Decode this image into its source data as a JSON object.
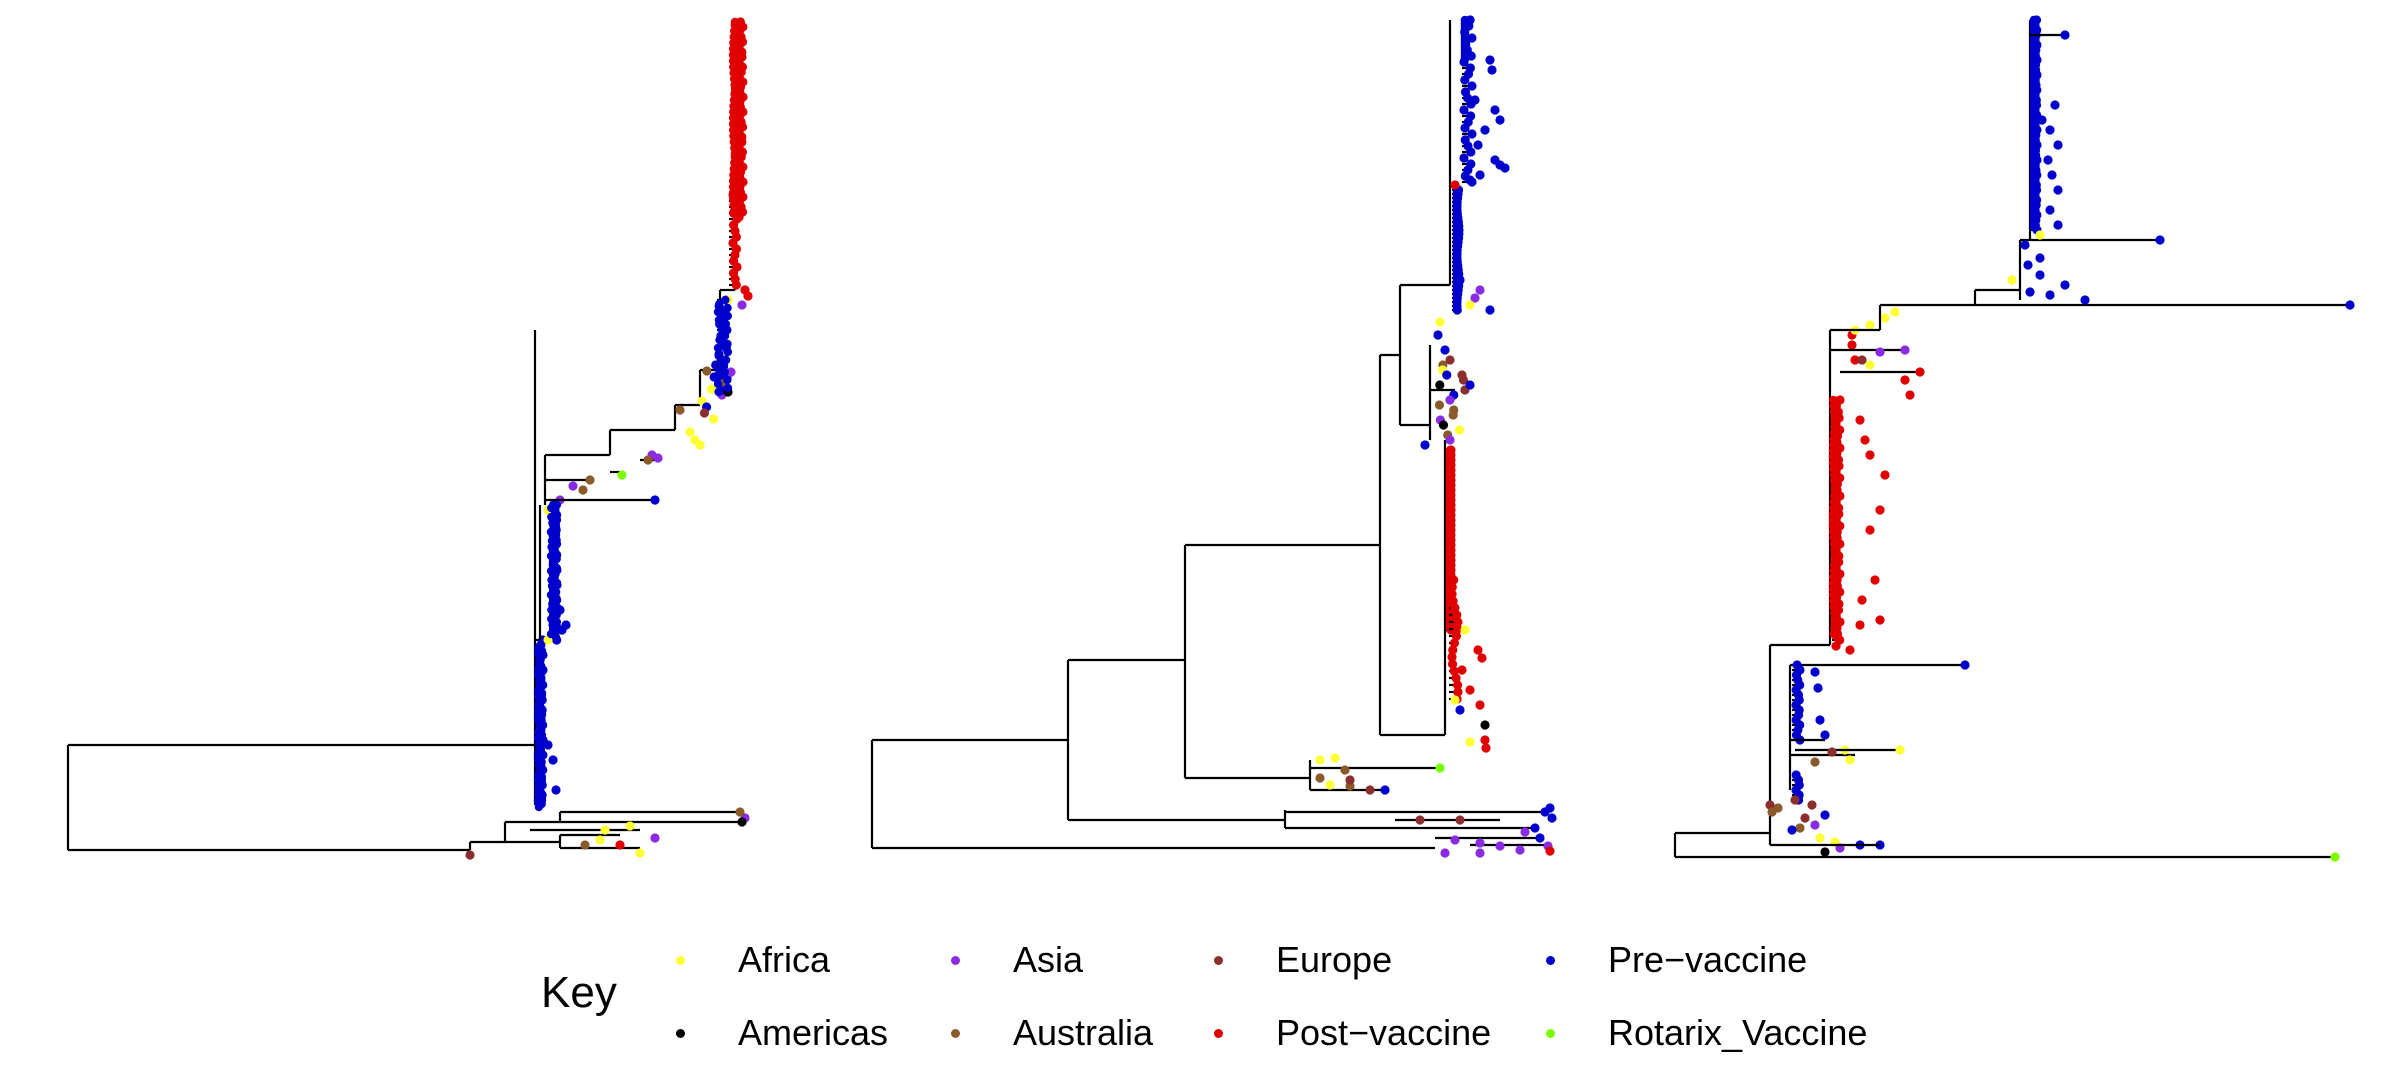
{
  "trees": [
    {
      "id": "tree-1"
    },
    {
      "id": "tree-2"
    },
    {
      "id": "tree-3"
    }
  ],
  "legend": {
    "title": "Key",
    "items": [
      {
        "label": "Africa",
        "color": "#ffff33"
      },
      {
        "label": "Asia",
        "color": "#8a2be2"
      },
      {
        "label": "Europe",
        "color": "#8b2e2e"
      },
      {
        "label": "Pre−vaccine",
        "color": "#0000cd"
      },
      {
        "label": "Americas",
        "color": "#000000"
      },
      {
        "label": "Australia",
        "color": "#8b5a2b"
      },
      {
        "label": "Post−vaccine",
        "color": "#e00000"
      },
      {
        "label": "Rotarix_Vaccine",
        "color": "#7cfc00"
      }
    ]
  }
}
